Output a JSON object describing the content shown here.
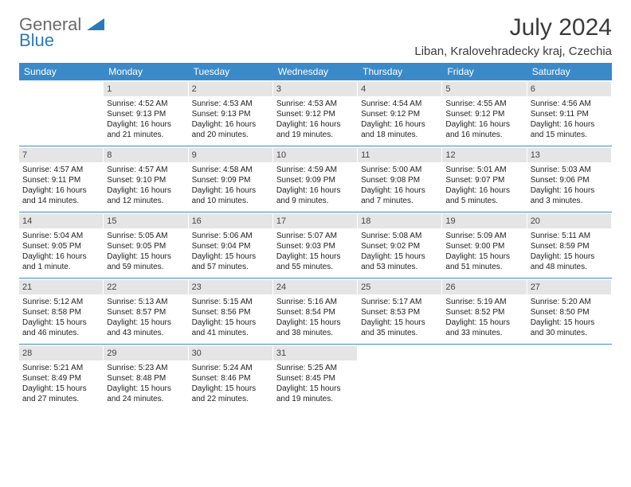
{
  "logo": {
    "top": "General",
    "bottom": "Blue"
  },
  "title": "July 2024",
  "location": "Liban, Kralovehradecky kraj, Czechia",
  "colors": {
    "header_bg": "#3a8ac9",
    "header_text": "#ffffff",
    "daynum_bg": "#e5e5e5",
    "row_border": "#3a8ac9",
    "logo_gray": "#6a6a6a",
    "logo_blue": "#2a7ab9",
    "title_color": "#3a3a3a"
  },
  "dayNames": [
    "Sunday",
    "Monday",
    "Tuesday",
    "Wednesday",
    "Thursday",
    "Friday",
    "Saturday"
  ],
  "weeks": [
    [
      {
        "num": "",
        "lines": []
      },
      {
        "num": "1",
        "lines": [
          "Sunrise: 4:52 AM",
          "Sunset: 9:13 PM",
          "Daylight: 16 hours and 21 minutes."
        ]
      },
      {
        "num": "2",
        "lines": [
          "Sunrise: 4:53 AM",
          "Sunset: 9:13 PM",
          "Daylight: 16 hours and 20 minutes."
        ]
      },
      {
        "num": "3",
        "lines": [
          "Sunrise: 4:53 AM",
          "Sunset: 9:12 PM",
          "Daylight: 16 hours and 19 minutes."
        ]
      },
      {
        "num": "4",
        "lines": [
          "Sunrise: 4:54 AM",
          "Sunset: 9:12 PM",
          "Daylight: 16 hours and 18 minutes."
        ]
      },
      {
        "num": "5",
        "lines": [
          "Sunrise: 4:55 AM",
          "Sunset: 9:12 PM",
          "Daylight: 16 hours and 16 minutes."
        ]
      },
      {
        "num": "6",
        "lines": [
          "Sunrise: 4:56 AM",
          "Sunset: 9:11 PM",
          "Daylight: 16 hours and 15 minutes."
        ]
      }
    ],
    [
      {
        "num": "7",
        "lines": [
          "Sunrise: 4:57 AM",
          "Sunset: 9:11 PM",
          "Daylight: 16 hours and 14 minutes."
        ]
      },
      {
        "num": "8",
        "lines": [
          "Sunrise: 4:57 AM",
          "Sunset: 9:10 PM",
          "Daylight: 16 hours and 12 minutes."
        ]
      },
      {
        "num": "9",
        "lines": [
          "Sunrise: 4:58 AM",
          "Sunset: 9:09 PM",
          "Daylight: 16 hours and 10 minutes."
        ]
      },
      {
        "num": "10",
        "lines": [
          "Sunrise: 4:59 AM",
          "Sunset: 9:09 PM",
          "Daylight: 16 hours and 9 minutes."
        ]
      },
      {
        "num": "11",
        "lines": [
          "Sunrise: 5:00 AM",
          "Sunset: 9:08 PM",
          "Daylight: 16 hours and 7 minutes."
        ]
      },
      {
        "num": "12",
        "lines": [
          "Sunrise: 5:01 AM",
          "Sunset: 9:07 PM",
          "Daylight: 16 hours and 5 minutes."
        ]
      },
      {
        "num": "13",
        "lines": [
          "Sunrise: 5:03 AM",
          "Sunset: 9:06 PM",
          "Daylight: 16 hours and 3 minutes."
        ]
      }
    ],
    [
      {
        "num": "14",
        "lines": [
          "Sunrise: 5:04 AM",
          "Sunset: 9:05 PM",
          "Daylight: 16 hours and 1 minute."
        ]
      },
      {
        "num": "15",
        "lines": [
          "Sunrise: 5:05 AM",
          "Sunset: 9:05 PM",
          "Daylight: 15 hours and 59 minutes."
        ]
      },
      {
        "num": "16",
        "lines": [
          "Sunrise: 5:06 AM",
          "Sunset: 9:04 PM",
          "Daylight: 15 hours and 57 minutes."
        ]
      },
      {
        "num": "17",
        "lines": [
          "Sunrise: 5:07 AM",
          "Sunset: 9:03 PM",
          "Daylight: 15 hours and 55 minutes."
        ]
      },
      {
        "num": "18",
        "lines": [
          "Sunrise: 5:08 AM",
          "Sunset: 9:02 PM",
          "Daylight: 15 hours and 53 minutes."
        ]
      },
      {
        "num": "19",
        "lines": [
          "Sunrise: 5:09 AM",
          "Sunset: 9:00 PM",
          "Daylight: 15 hours and 51 minutes."
        ]
      },
      {
        "num": "20",
        "lines": [
          "Sunrise: 5:11 AM",
          "Sunset: 8:59 PM",
          "Daylight: 15 hours and 48 minutes."
        ]
      }
    ],
    [
      {
        "num": "21",
        "lines": [
          "Sunrise: 5:12 AM",
          "Sunset: 8:58 PM",
          "Daylight: 15 hours and 46 minutes."
        ]
      },
      {
        "num": "22",
        "lines": [
          "Sunrise: 5:13 AM",
          "Sunset: 8:57 PM",
          "Daylight: 15 hours and 43 minutes."
        ]
      },
      {
        "num": "23",
        "lines": [
          "Sunrise: 5:15 AM",
          "Sunset: 8:56 PM",
          "Daylight: 15 hours and 41 minutes."
        ]
      },
      {
        "num": "24",
        "lines": [
          "Sunrise: 5:16 AM",
          "Sunset: 8:54 PM",
          "Daylight: 15 hours and 38 minutes."
        ]
      },
      {
        "num": "25",
        "lines": [
          "Sunrise: 5:17 AM",
          "Sunset: 8:53 PM",
          "Daylight: 15 hours and 35 minutes."
        ]
      },
      {
        "num": "26",
        "lines": [
          "Sunrise: 5:19 AM",
          "Sunset: 8:52 PM",
          "Daylight: 15 hours and 33 minutes."
        ]
      },
      {
        "num": "27",
        "lines": [
          "Sunrise: 5:20 AM",
          "Sunset: 8:50 PM",
          "Daylight: 15 hours and 30 minutes."
        ]
      }
    ],
    [
      {
        "num": "28",
        "lines": [
          "Sunrise: 5:21 AM",
          "Sunset: 8:49 PM",
          "Daylight: 15 hours and 27 minutes."
        ]
      },
      {
        "num": "29",
        "lines": [
          "Sunrise: 5:23 AM",
          "Sunset: 8:48 PM",
          "Daylight: 15 hours and 24 minutes."
        ]
      },
      {
        "num": "30",
        "lines": [
          "Sunrise: 5:24 AM",
          "Sunset: 8:46 PM",
          "Daylight: 15 hours and 22 minutes."
        ]
      },
      {
        "num": "31",
        "lines": [
          "Sunrise: 5:25 AM",
          "Sunset: 8:45 PM",
          "Daylight: 15 hours and 19 minutes."
        ]
      },
      {
        "num": "",
        "lines": []
      },
      {
        "num": "",
        "lines": []
      },
      {
        "num": "",
        "lines": []
      }
    ]
  ]
}
